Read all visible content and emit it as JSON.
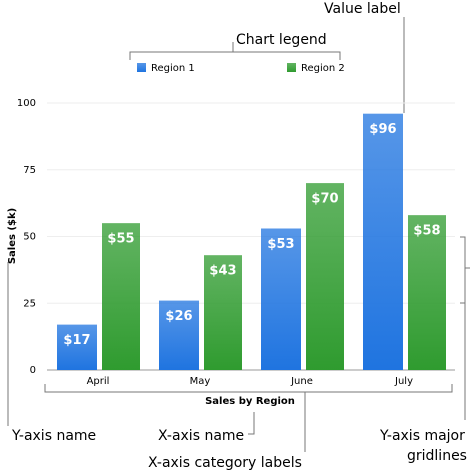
{
  "chart_data": {
    "type": "bar",
    "categories": [
      "April",
      "May",
      "June",
      "July"
    ],
    "series": [
      {
        "name": "Region 1",
        "color": "#1f74e0",
        "values": [
          17,
          26,
          53,
          96
        ],
        "value_labels": [
          "$17",
          "$26",
          "$53",
          "$96"
        ]
      },
      {
        "name": "Region 2",
        "color": "#2f9b2f",
        "values": [
          55,
          43,
          70,
          58
        ],
        "value_labels": [
          "$55",
          "$43",
          "$70",
          "$58"
        ]
      }
    ],
    "xlabel": "Sales by Region",
    "ylabel": "Sales ($k)",
    "ylim": [
      0,
      100
    ],
    "yticks": [
      0,
      25,
      50,
      75,
      100
    ],
    "grid": true,
    "legend": "top",
    "annotations": [
      "Value label",
      "Chart legend",
      "Y-axis name",
      "X-axis name",
      "X-axis category labels",
      "Y-axis major",
      "gridlines"
    ]
  }
}
